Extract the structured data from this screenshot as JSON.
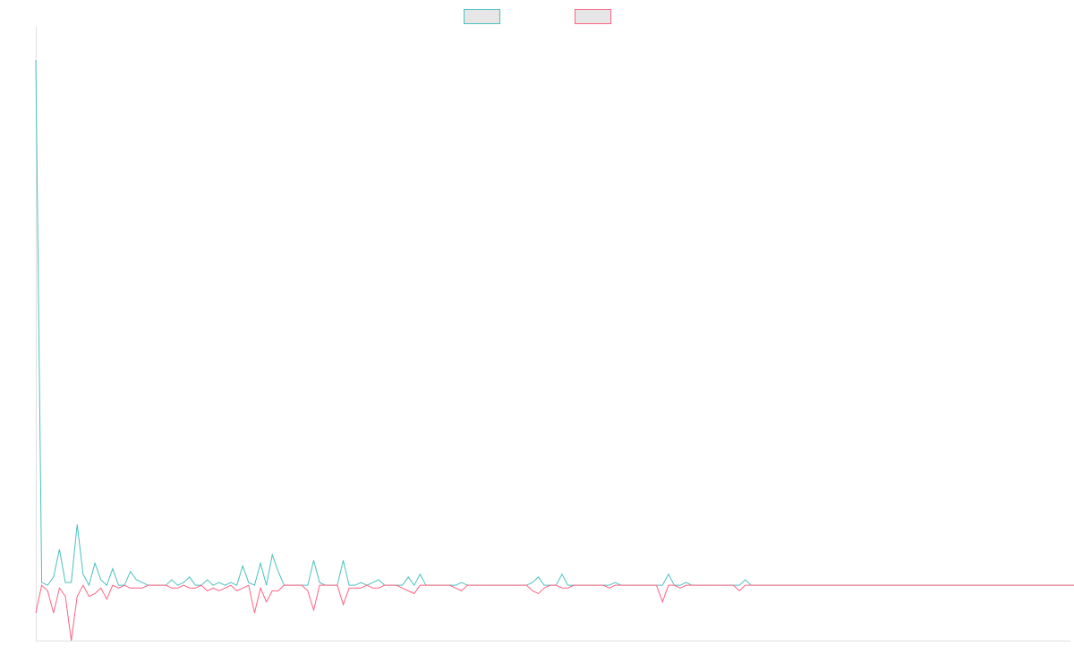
{
  "chart_data": {
    "type": "line",
    "title": "",
    "xlabel": "",
    "ylabel": "",
    "grid": false,
    "legend_position": "top-center",
    "x_range": [
      0,
      175
    ],
    "y_range": [
      -10,
      100
    ],
    "series": [
      {
        "color": "#4bc0c0",
        "legend_fill": "#e6e6e6",
        "values": [
          95,
          0.5,
          0,
          1.5,
          6.5,
          0.5,
          0.5,
          11,
          2,
          0,
          4,
          1,
          0,
          3,
          0,
          0,
          2.5,
          1,
          0.5,
          0,
          0,
          0,
          0,
          1,
          0,
          0.5,
          1.5,
          0,
          0,
          1,
          0,
          0.5,
          0,
          0.5,
          0,
          3.5,
          0.5,
          0,
          4,
          0,
          5.5,
          2.5,
          0,
          0,
          0,
          0,
          0,
          4.5,
          0.5,
          0,
          0,
          0,
          4.5,
          0,
          0,
          0.5,
          0,
          0.5,
          1,
          0,
          0,
          0,
          0,
          1.5,
          0,
          2,
          0,
          0,
          0,
          0,
          0,
          0,
          0.5,
          0,
          0,
          0,
          0,
          0,
          0,
          0,
          0,
          0,
          0,
          0,
          0.5,
          1.5,
          0,
          0,
          0,
          2,
          0,
          0,
          0,
          0,
          0,
          0,
          0,
          0,
          0.5,
          0,
          0,
          0,
          0,
          0,
          0,
          0,
          0,
          2,
          0,
          0,
          0.5,
          0,
          0,
          0,
          0,
          0,
          0,
          0,
          0,
          0,
          1,
          0,
          0,
          0,
          0,
          0,
          0,
          0,
          0,
          0,
          0,
          0,
          0,
          0,
          0,
          0,
          0,
          0,
          0,
          0,
          0,
          0,
          0,
          0,
          0,
          0,
          0,
          0,
          0,
          0,
          0,
          0,
          0,
          0,
          0,
          0,
          0,
          0,
          0,
          0,
          0,
          0,
          0,
          0,
          0,
          0,
          0,
          0,
          0,
          0,
          0,
          0,
          0,
          0,
          0,
          0,
          0,
          0,
          0,
          0,
          0
        ]
      },
      {
        "color": "#ff6384",
        "legend_fill": "#e6e6e6",
        "values": [
          -5,
          0,
          -1,
          -5,
          -0.5,
          -2,
          -10,
          -2,
          0,
          -2,
          -1.5,
          -0.5,
          -2.5,
          0,
          -0.5,
          0,
          -0.5,
          -0.5,
          -0.5,
          0,
          0,
          0,
          0,
          -0.5,
          -0.5,
          0,
          -0.5,
          -0.5,
          0,
          -1,
          -0.5,
          -1,
          -0.5,
          0,
          -1,
          -0.5,
          0,
          -5,
          -0.5,
          -3,
          -1,
          -1,
          0,
          0,
          0,
          0,
          -1,
          -4.5,
          0,
          0,
          0,
          0,
          -3.5,
          -0.5,
          -0.5,
          -0.5,
          0,
          -0.5,
          -0.5,
          0,
          0,
          0,
          -0.5,
          -1,
          -1.5,
          0,
          0,
          0,
          0,
          0,
          0,
          -0.5,
          -1,
          0,
          0,
          0,
          0,
          0,
          0,
          0,
          0,
          0,
          0,
          0,
          -1,
          -1.5,
          -0.5,
          0,
          0,
          -0.5,
          -0.5,
          0,
          0,
          0,
          0,
          0,
          0,
          -0.5,
          0,
          0,
          0,
          0,
          0,
          0,
          0,
          0,
          -3,
          0,
          0,
          -0.5,
          0,
          0,
          0,
          0,
          0,
          0,
          0,
          0,
          0,
          -1,
          0,
          0,
          0,
          0,
          0,
          0,
          0,
          0,
          0,
          0,
          0,
          0,
          0,
          0,
          0,
          0,
          0,
          0,
          0,
          0,
          0,
          0,
          0,
          0,
          0,
          0,
          0,
          0,
          0,
          0,
          0,
          0,
          0,
          0,
          0,
          0,
          0,
          0,
          0,
          0,
          0,
          0,
          0,
          0,
          0,
          0,
          0,
          0,
          0,
          0,
          0,
          0,
          0,
          0,
          0,
          0,
          0,
          0,
          0,
          0
        ]
      }
    ]
  }
}
